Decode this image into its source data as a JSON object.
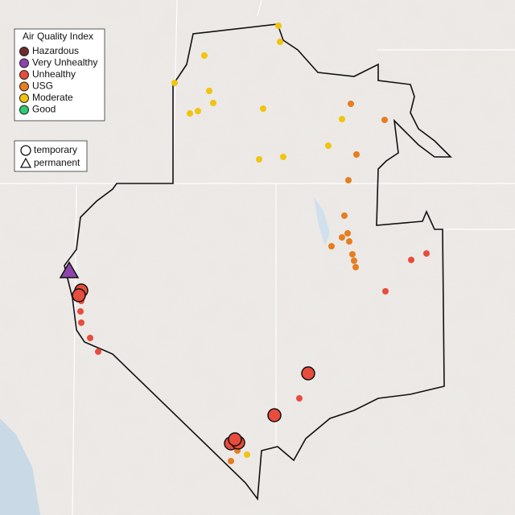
{
  "legend": {
    "title": "Air Quality Index",
    "items": [
      {
        "name": "Hazardous",
        "color": "#6e2c2c"
      },
      {
        "name": "Very Unhealthy",
        "color": "#8e44ad"
      },
      {
        "name": "Unhealthy",
        "color": "#e84c3d"
      },
      {
        "name": "USG",
        "color": "#e67e22"
      },
      {
        "name": "Moderate",
        "color": "#f1c40f"
      },
      {
        "name": "Good",
        "color": "#2ecc71"
      }
    ]
  },
  "monitor_legend": {
    "items": [
      "temporary",
      "permanent"
    ]
  }
}
